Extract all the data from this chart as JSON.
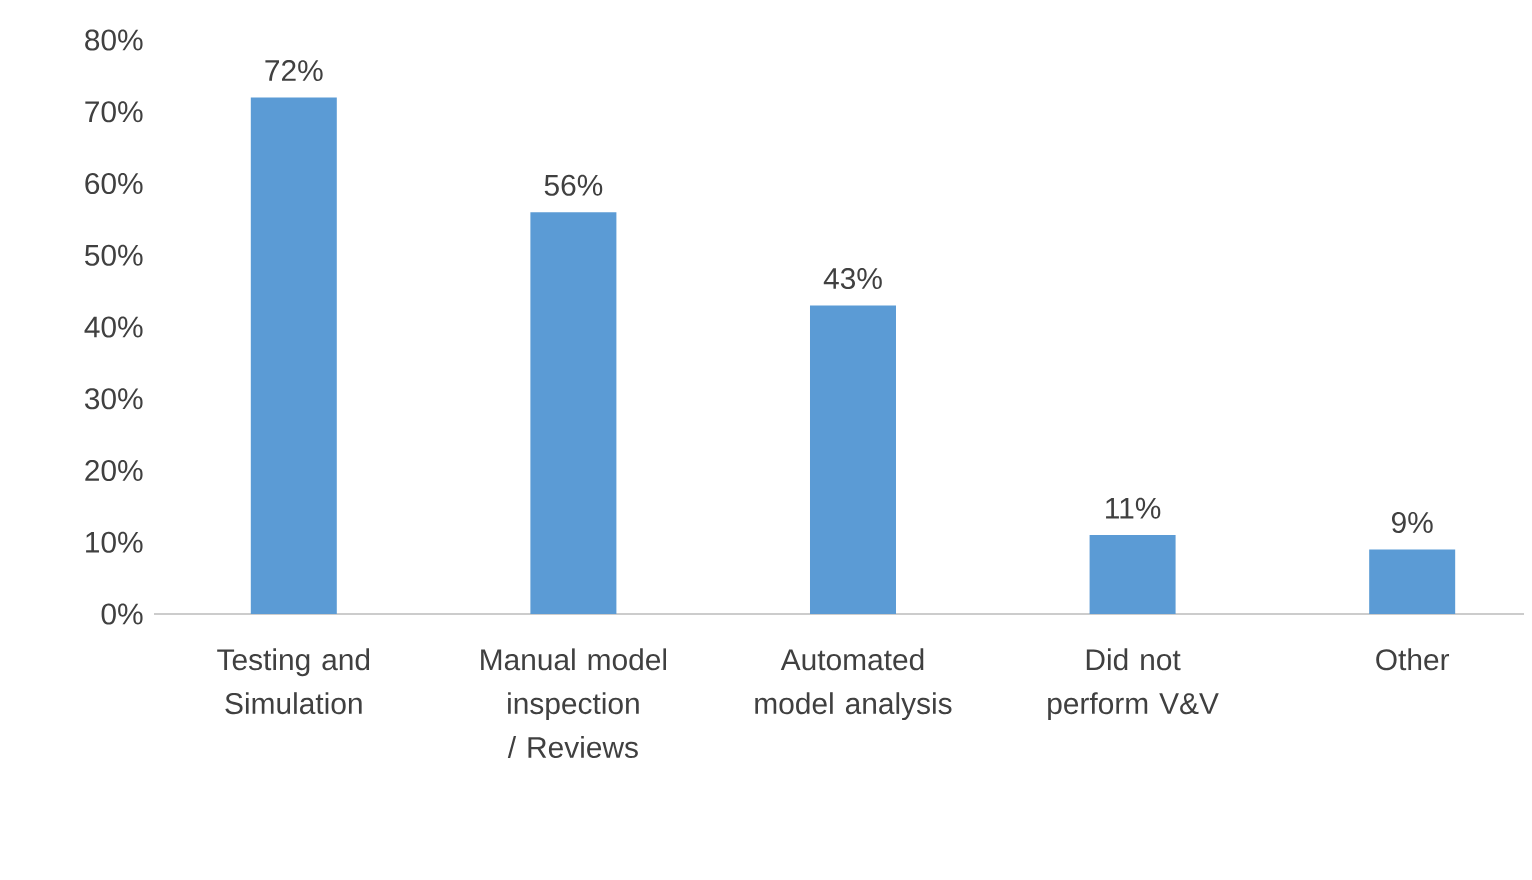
{
  "chart_data": {
    "type": "bar",
    "categories": [
      "Testing and Simulation",
      "Manual model inspection / Reviews",
      "Automated model analysis",
      "Did not perform V&V",
      "Other"
    ],
    "values": [
      72,
      56,
      43,
      11,
      9
    ],
    "value_labels": [
      "72%",
      "56%",
      "43%",
      "11%",
      "9%"
    ],
    "color": "#5b9bd5",
    "ylim": [
      0,
      80
    ],
    "yticks": [
      {
        "value": 0,
        "label": "0%"
      },
      {
        "value": 10,
        "label": "10%"
      },
      {
        "value": 20,
        "label": "20%"
      },
      {
        "value": 30,
        "label": "30%"
      },
      {
        "value": 40,
        "label": "40%"
      },
      {
        "value": 50,
        "label": "50%"
      },
      {
        "value": 60,
        "label": "60%"
      },
      {
        "value": 70,
        "label": "70%"
      },
      {
        "value": 80,
        "label": "80%"
      }
    ],
    "grid": false
  }
}
